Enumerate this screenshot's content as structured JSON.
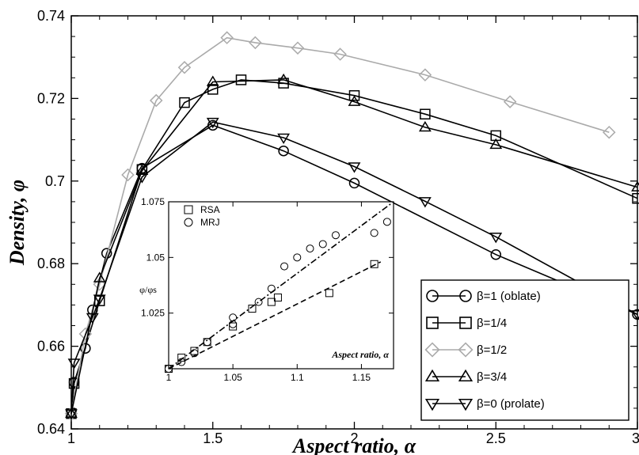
{
  "chart_data": [
    {
      "type": "line",
      "xlabel": "Aspect ratio, α",
      "ylabel": "Density, φ",
      "xlim": [
        1,
        3
      ],
      "ylim": [
        0.64,
        0.74
      ],
      "xticks": [
        1,
        1.5,
        2,
        2.5,
        3
      ],
      "xtick_labels": [
        "1",
        "1.5",
        "2",
        "2.5",
        "3"
      ],
      "yticks": [
        0.64,
        0.66,
        0.68,
        0.7,
        0.72,
        0.74
      ],
      "ytick_labels": [
        "0.64",
        "0.66",
        "0.68",
        "0.7",
        "0.72",
        "0.74"
      ],
      "legend_position": "bottom-right",
      "series": [
        {
          "name": "β=1 (oblate)",
          "marker": "circle",
          "color": "#000000",
          "x": [
            1,
            1.01,
            1.05,
            1.075,
            1.125,
            1.25,
            1.5,
            1.75,
            2,
            2.5,
            3
          ],
          "y": [
            0.6437,
            0.6513,
            0.6595,
            0.6688,
            0.6825,
            0.7031,
            0.7135,
            0.7073,
            0.6995,
            0.6822,
            0.6677
          ]
        },
        {
          "name": "β=1/4",
          "marker": "square",
          "color": "#000000",
          "x": [
            1,
            1.01,
            1.1,
            1.25,
            1.4,
            1.5,
            1.6,
            1.75,
            2,
            2.25,
            2.5,
            3
          ],
          "y": [
            0.6437,
            0.651,
            0.671,
            0.7028,
            0.719,
            0.7222,
            0.7245,
            0.7237,
            0.7207,
            0.7162,
            0.711,
            0.6958
          ]
        },
        {
          "name": "β=1/2",
          "marker": "diamond",
          "color": "#aaaaaa",
          "x": [
            1,
            1.05,
            1.1,
            1.2,
            1.3,
            1.4,
            1.55,
            1.65,
            1.8,
            1.95,
            2.25,
            2.55,
            2.9
          ],
          "y": [
            0.6437,
            0.663,
            0.675,
            0.7015,
            0.7195,
            0.7275,
            0.7347,
            0.7335,
            0.7322,
            0.7307,
            0.7257,
            0.7192,
            0.7118
          ]
        },
        {
          "name": "β=3/4",
          "marker": "triangle-up",
          "color": "#000000",
          "x": [
            1,
            1.1,
            1.25,
            1.5,
            1.75,
            2,
            2.25,
            2.5,
            3
          ],
          "y": [
            0.6437,
            0.6765,
            0.7025,
            0.724,
            0.7245,
            0.7192,
            0.713,
            0.7088,
            0.6985
          ]
        },
        {
          "name": "β=0 (prolate)",
          "marker": "triangle-down",
          "color": "#000000",
          "x": [
            1,
            1.01,
            1.075,
            1.1,
            1.25,
            1.5,
            1.75,
            2,
            2.25,
            2.5,
            3
          ],
          "y": [
            0.6437,
            0.656,
            0.667,
            0.6715,
            0.701,
            0.7143,
            0.7105,
            0.7035,
            0.6951,
            0.6865,
            0.6677
          ]
        }
      ]
    },
    {
      "type": "scatter",
      "inset": true,
      "xlabel": "Aspect ratio, α",
      "ylabel": "φ/φs",
      "xlim": [
        1,
        1.175
      ],
      "ylim": [
        1,
        1.075
      ],
      "xticks": [
        1,
        1.05,
        1.1,
        1.15
      ],
      "xtick_labels": [
        "1",
        "1.05",
        "1.1",
        "1.15"
      ],
      "yticks": [
        1.025,
        1.05,
        1.075
      ],
      "ytick_labels": [
        "1.025",
        "1.05",
        "1.075"
      ],
      "legend_position": "top-left",
      "series": [
        {
          "name": "RSA",
          "marker": "square",
          "x": [
            1,
            1.01,
            1.02,
            1.03,
            1.05,
            1.065,
            1.08,
            1.085,
            1.125,
            1.16
          ],
          "y": [
            1.0,
            1.005,
            1.008,
            1.012,
            1.019,
            1.027,
            1.03,
            1.032,
            1.034,
            1.047
          ],
          "fit": {
            "style": "dashed",
            "x": [
              1,
              1.165
            ],
            "y": [
              1.0,
              1.048
            ]
          }
        },
        {
          "name": "MRJ",
          "marker": "circle",
          "x": [
            1,
            1.01,
            1.02,
            1.03,
            1.05,
            1.05,
            1.07,
            1.08,
            1.09,
            1.1,
            1.11,
            1.12,
            1.13,
            1.16,
            1.17
          ],
          "y": [
            1.0,
            1.003,
            1.007,
            1.012,
            1.02,
            1.023,
            1.03,
            1.036,
            1.046,
            1.05,
            1.054,
            1.056,
            1.06,
            1.061,
            1.066
          ],
          "fit": {
            "style": "dashdot",
            "x": [
              1,
              1.175
            ],
            "y": [
              1.0,
              1.075
            ]
          }
        }
      ]
    }
  ]
}
